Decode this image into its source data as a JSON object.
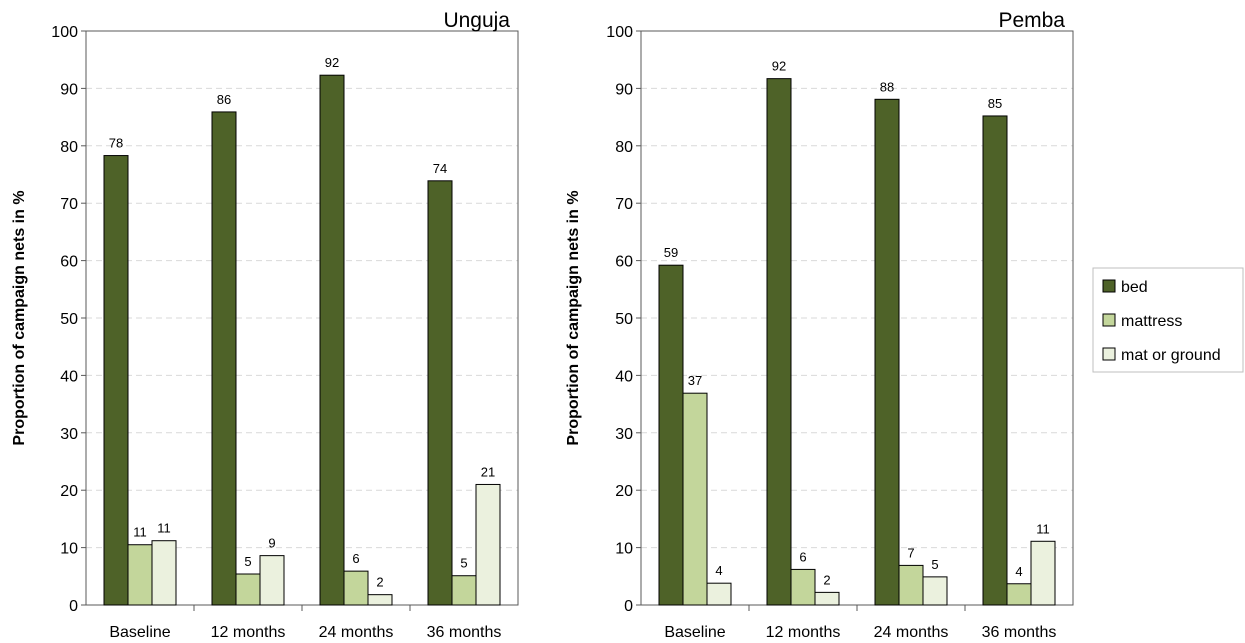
{
  "colors": {
    "bed": "#4e6228",
    "mattress": "#c3d69b",
    "mat_or_ground": "#ebf1de",
    "grid": "#d9d9d9",
    "axis": "#595959",
    "bar_stroke": "#000000"
  },
  "legend": {
    "placement": "right",
    "items": [
      "bed",
      "mattress",
      "mat or ground"
    ]
  },
  "chart_data": [
    {
      "type": "bar",
      "title": "Unguja",
      "ylabel": "Proportion of campaign nets in %",
      "xlabel": "",
      "ylim": [
        0,
        100
      ],
      "yticks": [
        0,
        10,
        20,
        30,
        40,
        50,
        60,
        70,
        80,
        90,
        100
      ],
      "grid": true,
      "categories": [
        "Baseline",
        "12 months",
        "24 months",
        "36 months"
      ],
      "series": [
        {
          "name": "bed",
          "values": [
            78.3,
            85.9,
            92.3,
            73.9
          ],
          "labels": [
            "78",
            "86",
            "92",
            "74"
          ]
        },
        {
          "name": "mattress",
          "values": [
            10.5,
            5.4,
            5.9,
            5.1
          ],
          "labels": [
            "11",
            "5",
            "6",
            "5"
          ]
        },
        {
          "name": "mat or ground",
          "values": [
            11.2,
            8.6,
            1.8,
            21.0
          ],
          "labels": [
            "11",
            "9",
            "2",
            "21"
          ]
        }
      ]
    },
    {
      "type": "bar",
      "title": "Pemba",
      "ylabel": "Proportion of campaign nets in %",
      "xlabel": "",
      "ylim": [
        0,
        100
      ],
      "yticks": [
        0,
        10,
        20,
        30,
        40,
        50,
        60,
        70,
        80,
        90,
        100
      ],
      "grid": true,
      "categories": [
        "Baseline",
        "12 months",
        "24 months",
        "36 months"
      ],
      "series": [
        {
          "name": "bed",
          "values": [
            59.2,
            91.7,
            88.1,
            85.2
          ],
          "labels": [
            "59",
            "92",
            "88",
            "85"
          ]
        },
        {
          "name": "mattress",
          "values": [
            36.9,
            6.2,
            6.9,
            3.7
          ],
          "labels": [
            "37",
            "6",
            "7",
            "4"
          ]
        },
        {
          "name": "mat or ground",
          "values": [
            3.8,
            2.2,
            4.9,
            11.1
          ],
          "labels": [
            "4",
            "2",
            "5",
            "11"
          ]
        }
      ]
    }
  ]
}
